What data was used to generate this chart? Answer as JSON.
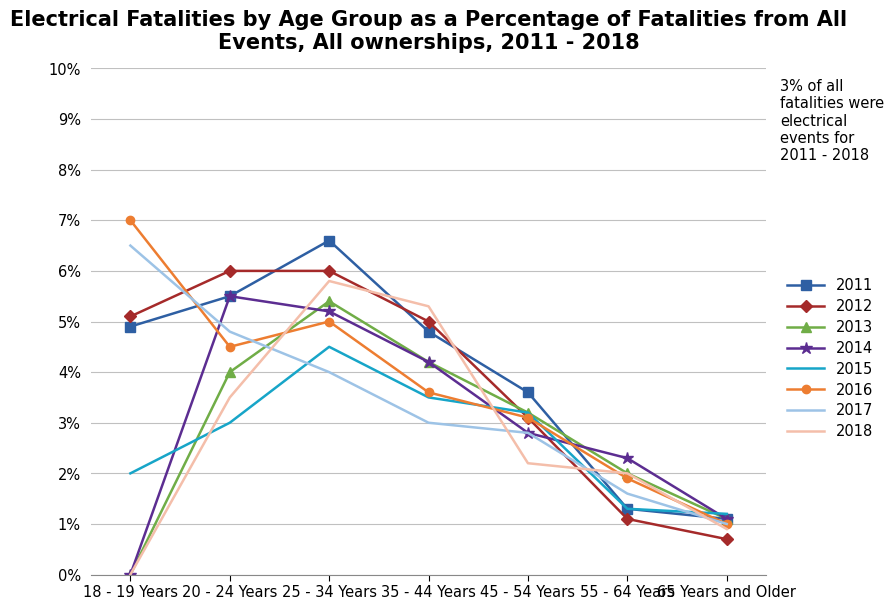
{
  "title": "Electrical Fatalities by Age Group as a Percentage of Fatalities from All\nEvents, All ownerships, 2011 - 2018",
  "annotation": "3% of all\nfatalities were\nelectrical\nevents for\n2011 - 2018",
  "categories": [
    "18 - 19 Years",
    "20 - 24 Years",
    "25 - 34 Years",
    "35 - 44 Years",
    "45 - 54 Years",
    "55 - 64 Years",
    "65 Years and Older"
  ],
  "series": {
    "2011": {
      "values": [
        0.049,
        0.055,
        0.066,
        0.048,
        0.036,
        0.013,
        0.011
      ],
      "color": "#2E5FA3",
      "marker": "s",
      "markersize": 7,
      "linewidth": 1.8
    },
    "2012": {
      "values": [
        0.051,
        0.06,
        0.06,
        0.05,
        0.031,
        0.011,
        0.007
      ],
      "color": "#A52A2A",
      "marker": "D",
      "markersize": 6,
      "linewidth": 1.8
    },
    "2013": {
      "values": [
        0.0,
        0.04,
        0.054,
        0.042,
        0.032,
        0.02,
        0.011
      ],
      "color": "#70AD47",
      "marker": "^",
      "markersize": 7,
      "linewidth": 1.8
    },
    "2014": {
      "values": [
        0.0,
        0.055,
        0.052,
        0.042,
        0.028,
        0.023,
        0.011
      ],
      "color": "#5C2D91",
      "marker": "*",
      "markersize": 9,
      "linewidth": 1.8
    },
    "2015": {
      "values": [
        0.02,
        0.03,
        0.045,
        0.035,
        0.032,
        0.013,
        0.012
      ],
      "color": "#17A5C8",
      "marker": null,
      "markersize": 0,
      "linewidth": 1.8
    },
    "2016": {
      "values": [
        0.07,
        0.045,
        0.05,
        0.036,
        0.031,
        0.019,
        0.01
      ],
      "color": "#ED7D31",
      "marker": "o",
      "markersize": 6,
      "linewidth": 1.8
    },
    "2017": {
      "values": [
        0.065,
        0.048,
        0.04,
        0.03,
        0.028,
        0.016,
        0.01
      ],
      "color": "#9DC3E6",
      "marker": null,
      "markersize": 0,
      "linewidth": 1.8
    },
    "2018": {
      "values": [
        0.0,
        0.035,
        0.058,
        0.053,
        0.022,
        0.02,
        0.009
      ],
      "color": "#F4BEAA",
      "marker": null,
      "markersize": 0,
      "linewidth": 1.8
    }
  },
  "ylim": [
    0,
    0.1
  ],
  "yticks": [
    0.0,
    0.01,
    0.02,
    0.03,
    0.04,
    0.05,
    0.06,
    0.07,
    0.08,
    0.09,
    0.1
  ],
  "background_color": "#FFFFFF",
  "grid_color": "#C0C0C0",
  "title_fontsize": 15
}
